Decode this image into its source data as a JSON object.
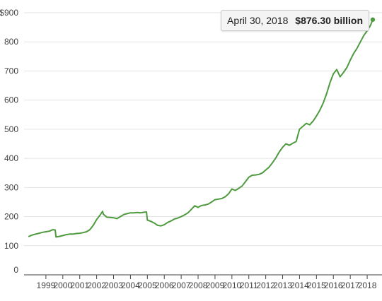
{
  "colors": {
    "line": "#4e9a3e",
    "grid": "#e3e3e3",
    "axis": "#444444",
    "text": "#444444"
  },
  "tooltip": {
    "date": "April 30, 2018",
    "value": "$876.30 billion"
  },
  "chart_data": {
    "type": "line",
    "title": "",
    "xlabel": "",
    "ylabel": "",
    "y_tick_labels": [
      "0",
      "100",
      "200",
      "300",
      "400",
      "500",
      "600",
      "700",
      "800",
      "$900"
    ],
    "y_ticks": [
      0,
      100,
      200,
      300,
      400,
      500,
      600,
      700,
      800,
      900
    ],
    "ylim": [
      0,
      900
    ],
    "x_tick_labels": [
      "1999",
      "2000",
      "2001",
      "2002",
      "2003",
      "2004",
      "2005",
      "2006",
      "2007",
      "2008",
      "2009",
      "2010",
      "2011",
      "2012",
      "2013",
      "2014",
      "2015",
      "2016",
      "2017",
      "2018"
    ],
    "x_ticks": [
      1999,
      2000,
      2001,
      2002,
      2003,
      2004,
      2005,
      2006,
      2007,
      2008,
      2009,
      2010,
      2011,
      2012,
      2013,
      2014,
      2015,
      2016,
      2017,
      2018
    ],
    "xlim": [
      1998.0,
      2018.5
    ],
    "grid": "horizontal",
    "highlight": {
      "x": 2018.33,
      "y": 876.3
    },
    "series": [
      {
        "x": [
          1998.0,
          1998.2,
          1998.4,
          1998.6,
          1998.8,
          1999.0,
          1999.2,
          1999.4,
          1999.55,
          1999.6,
          1999.8,
          2000.0,
          2000.2,
          2000.4,
          2000.6,
          2000.8,
          2001.0,
          2001.2,
          2001.4,
          2001.6,
          2001.8,
          2002.0,
          2002.2,
          2002.35,
          2002.4,
          2002.6,
          2002.8,
          2003.0,
          2003.2,
          2003.4,
          2003.6,
          2003.8,
          2004.0,
          2004.2,
          2004.4,
          2004.6,
          2004.8,
          2004.95,
          2005.0,
          2005.2,
          2005.4,
          2005.6,
          2005.8,
          2006.0,
          2006.2,
          2006.4,
          2006.6,
          2006.8,
          2007.0,
          2007.2,
          2007.4,
          2007.6,
          2007.8,
          2008.0,
          2008.2,
          2008.4,
          2008.6,
          2008.8,
          2009.0,
          2009.2,
          2009.4,
          2009.6,
          2009.8,
          2010.0,
          2010.2,
          2010.4,
          2010.6,
          2010.8,
          2011.0,
          2011.2,
          2011.4,
          2011.6,
          2011.8,
          2012.0,
          2012.2,
          2012.4,
          2012.6,
          2012.8,
          2013.0,
          2013.2,
          2013.4,
          2013.6,
          2013.8,
          2014.0,
          2014.2,
          2014.4,
          2014.6,
          2014.8,
          2015.0,
          2015.2,
          2015.4,
          2015.6,
          2015.8,
          2016.0,
          2016.2,
          2016.4,
          2016.6,
          2016.8,
          2017.0,
          2017.2,
          2017.4,
          2017.6,
          2017.8,
          2018.0,
          2018.2,
          2018.33
        ],
        "values": [
          132,
          137,
          140,
          143,
          146,
          148,
          150,
          155,
          154,
          130,
          132,
          135,
          138,
          140,
          140,
          142,
          143,
          145,
          148,
          155,
          170,
          190,
          205,
          218,
          208,
          198,
          197,
          196,
          193,
          200,
          207,
          210,
          213,
          213,
          214,
          213,
          215,
          216,
          188,
          184,
          178,
          170,
          168,
          172,
          180,
          185,
          192,
          195,
          200,
          206,
          213,
          225,
          237,
          232,
          238,
          240,
          243,
          250,
          258,
          260,
          262,
          268,
          278,
          295,
          290,
          297,
          305,
          320,
          335,
          342,
          343,
          345,
          350,
          360,
          370,
          385,
          402,
          422,
          438,
          450,
          445,
          452,
          458,
          500,
          510,
          520,
          515,
          528,
          545,
          565,
          590,
          622,
          660,
          690,
          705,
          680,
          695,
          712,
          737,
          760,
          778,
          800,
          822,
          838,
          857,
          876.3
        ]
      }
    ]
  }
}
